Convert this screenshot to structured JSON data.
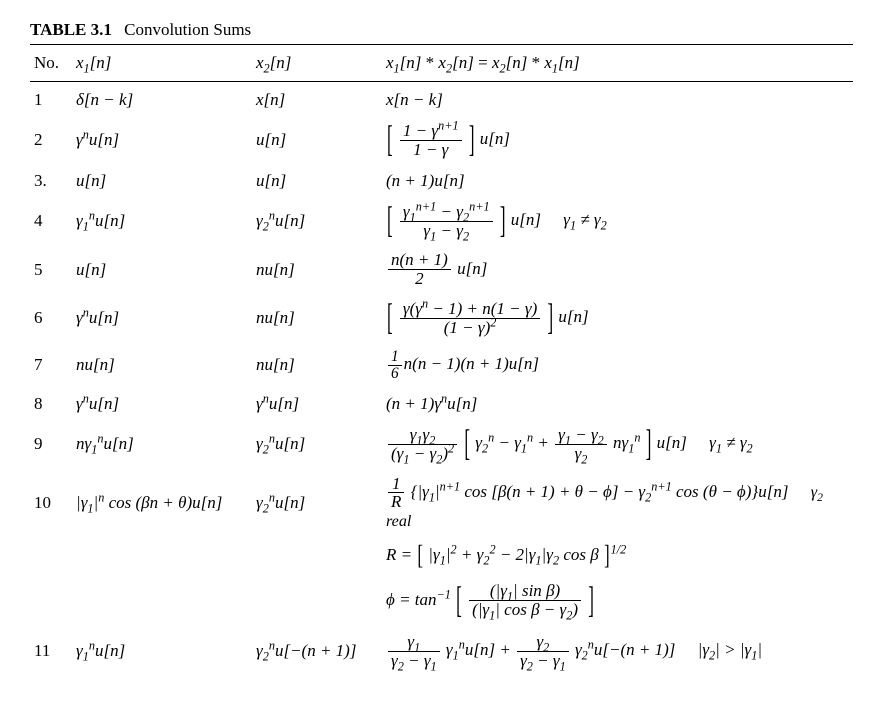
{
  "table": {
    "number": "TABLE 3.1",
    "title": "Convolution Sums",
    "columns": {
      "no": "No.",
      "x1": "x₁[n]",
      "x2": "x₂[n]",
      "result": "x₁[n] * x₂[n] = x₂[n] * x₁[n]"
    },
    "rows": [
      {
        "no": "1",
        "x1": "δ[n − k]",
        "x2": "x[n]",
        "result": "x[n − k]",
        "cond": ""
      },
      {
        "no": "2",
        "x1": "γⁿu[n]",
        "x2": "u[n]",
        "result_frac_num": "1 − γ",
        "result_frac_num_sup": "n+1",
        "result_frac_den": "1 − γ",
        "result_tail": " u[n]",
        "cond": ""
      },
      {
        "no": "3.",
        "x1": "u[n]",
        "x2": "u[n]",
        "result": "(n + 1)u[n]",
        "cond": ""
      },
      {
        "no": "4",
        "x1": "γ₁ⁿu[n]",
        "x2": "γ₂ⁿu[n]",
        "result_frac_num_a": "γ₁",
        "result_frac_num_a_sup": "n+1",
        "result_frac_num_b": "γ₂",
        "result_frac_num_b_sup": "n+1",
        "result_frac_den": "γ₁ − γ₂",
        "result_tail": " u[n]",
        "cond": "γ₁ ≠ γ₂"
      },
      {
        "no": "5",
        "x1": "u[n]",
        "x2": "nu[n]",
        "result_frac_num": "n(n + 1)",
        "result_frac_den": "2",
        "result_tail": " u[n]",
        "cond": ""
      },
      {
        "no": "6",
        "x1": "γⁿu[n]",
        "x2": "nu[n]",
        "result_frac_num": "γ(γⁿ − 1) + n(1 − γ)",
        "result_frac_den": "(1 − γ)²",
        "result_tail": " u[n]",
        "cond": ""
      },
      {
        "no": "7",
        "x1": "nu[n]",
        "x2": "nu[n]",
        "result_pre": "",
        "result_coeff_num": "1",
        "result_coeff_den": "6",
        "result": "n(n − 1)(n + 1)u[n]",
        "cond": ""
      },
      {
        "no": "8",
        "x1": "γⁿu[n]",
        "x2": "γⁿu[n]",
        "result": "(n + 1)γⁿu[n]",
        "cond": ""
      },
      {
        "no": "9",
        "x1": "nγ₁ⁿu[n]",
        "x2": "γ₂ⁿu[n]",
        "result_lead_num": "γ₁γ₂",
        "result_lead_den": "(γ₁ − γ₂)²",
        "result_inner_a": "γ₂ⁿ − γ₁ⁿ +",
        "result_inner_frac_num": "γ₁ − γ₂",
        "result_inner_frac_den": "γ₂",
        "result_inner_b": "nγ₁ⁿ",
        "result_tail": " u[n]",
        "cond": "γ₁ ≠ γ₂"
      },
      {
        "no": "10",
        "x1": "|γ₁|ⁿ cos (βn + θ)u[n]",
        "x2": "γ₂ⁿu[n]",
        "result_lead_num": "1",
        "result_lead_den": "R",
        "result_body_a": "{|γ₁|",
        "result_body_a_sup": "n+1",
        "result_body_b": " cos [β(n + 1) + θ − ϕ] − γ₂",
        "result_body_b_sup": "n+1",
        "result_body_c": " cos (θ − ϕ)}u[n]",
        "cond": "γ₂ real",
        "extra_R_lhs": "R = ",
        "extra_R_inner": "|γ₁|² + γ₂² − 2|γ₁|γ₂ cos β",
        "extra_R_exp": "1/2",
        "extra_phi_lhs": "ϕ = tan",
        "extra_phi_sup": "−1",
        "extra_phi_num": "(|γ₁| sin β)",
        "extra_phi_den": "(|γ₁| cos β − γ₂)"
      },
      {
        "no": "11",
        "x1": "γ₁ⁿu[n]",
        "x2": "γ₂ⁿu[−(n + 1)]",
        "result_t1_num": "γ₁",
        "result_t1_den": "γ₂ − γ₁",
        "result_t1_body": "γ₁ⁿu[n] + ",
        "result_t2_num": "γ₂",
        "result_t2_den": "γ₂ − γ₁",
        "result_t2_body": "γ₂ⁿu[−(n + 1)]",
        "cond": "|γ₂| > |γ₁|"
      }
    ]
  },
  "style": {
    "font_family": "Times New Roman, serif",
    "text_color": "#000000",
    "background_color": "#ffffff",
    "rule_color": "#000000",
    "base_fontsize_pt": 12
  }
}
